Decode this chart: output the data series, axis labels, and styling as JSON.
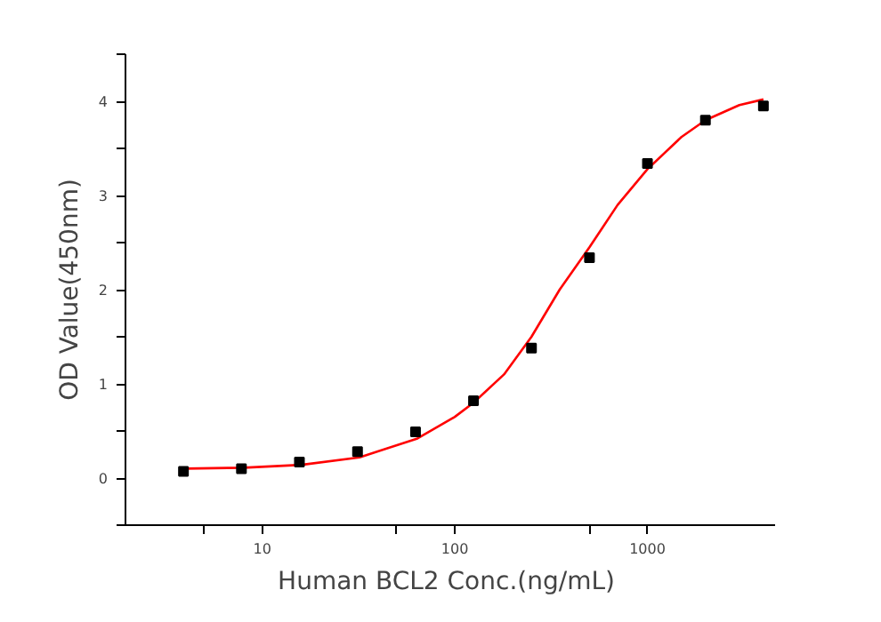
{
  "chart_data": {
    "type": "scatter",
    "xlabel": "Human BCL2  Conc.(ng/mL)",
    "ylabel": "OD Value(450nm)",
    "log": "x",
    "xlim": [
      1.95,
      4600
    ],
    "ylim": [
      -0.5,
      4.5
    ],
    "xticks": [
      {
        "value": 5,
        "label": null
      },
      10,
      {
        "value": 50,
        "label": null
      },
      100,
      {
        "value": 500,
        "label": null
      },
      1000
    ],
    "yticks": [
      {
        "value": -0.5,
        "label": null
      },
      0,
      {
        "value": 0.5,
        "label": null
      },
      1,
      {
        "value": 1.5,
        "label": null
      },
      2,
      {
        "value": 2.5,
        "label": null
      },
      3,
      {
        "value": 3.5,
        "label": null
      },
      4,
      {
        "value": 4.5,
        "label": null
      }
    ],
    "grid": false,
    "series": [
      {
        "marker": "square",
        "color": "#000000",
        "x": [
          3.9,
          7.8,
          15.6,
          31.25,
          62.5,
          125,
          250,
          500,
          1000,
          2000,
          4000
        ],
        "values": [
          0.07,
          0.1,
          0.17,
          0.28,
          0.49,
          0.82,
          1.38,
          2.34,
          3.34,
          3.8,
          3.95
        ]
      },
      {
        "type": "line",
        "marker": "none",
        "color": "#ff0000",
        "x": [
          4,
          8,
          16,
          32,
          64,
          100,
          125,
          180,
          250,
          350,
          500,
          700,
          1000,
          1500,
          2000,
          3000,
          4000
        ],
        "values": [
          0.1,
          0.11,
          0.14,
          0.22,
          0.42,
          0.65,
          0.8,
          1.1,
          1.5,
          2.0,
          2.45,
          2.9,
          3.28,
          3.62,
          3.8,
          3.96,
          4.02
        ]
      }
    ]
  }
}
